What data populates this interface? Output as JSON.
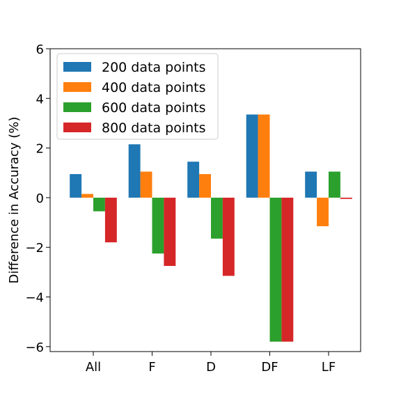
{
  "chart_data": {
    "type": "bar",
    "title": "",
    "xlabel": "",
    "ylabel": "Difference in Accuracy (%)",
    "categories": [
      "All",
      "F",
      "D",
      "DF",
      "LF"
    ],
    "ylim": [
      -6.2,
      6.0
    ],
    "yticks": [
      6,
      4,
      2,
      0,
      -2,
      -4,
      -6
    ],
    "ytick_labels": [
      "6",
      "4",
      "2",
      "0",
      "−2",
      "−4",
      "−6"
    ],
    "grid": false,
    "legend_position": "top-left",
    "series": [
      {
        "name": "200 data points",
        "color": "#1f77b4",
        "values": [
          0.95,
          2.15,
          1.45,
          3.35,
          1.05
        ]
      },
      {
        "name": "400 data points",
        "color": "#ff7f0e",
        "values": [
          0.15,
          1.05,
          0.95,
          3.35,
          -1.15
        ]
      },
      {
        "name": "600 data points",
        "color": "#2ca02c",
        "values": [
          -0.55,
          -2.25,
          -1.65,
          -5.8,
          1.05
        ]
      },
      {
        "name": "800 data points",
        "color": "#d62728",
        "values": [
          -1.8,
          -2.75,
          -3.15,
          -5.8,
          -0.05
        ]
      }
    ]
  }
}
